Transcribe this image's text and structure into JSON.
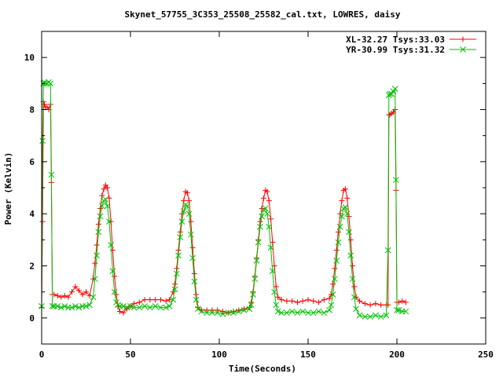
{
  "chart_data": {
    "type": "line",
    "title": "Skynet_57755_3C353_25508_25582_cal.txt, LOWRES, daisy",
    "xlabel": "Time(Seconds)",
    "ylabel": "Power (Kelvin)",
    "xlim": [
      0,
      250
    ],
    "ylim": [
      -1,
      11
    ],
    "xticks": [
      0,
      50,
      100,
      150,
      200,
      250
    ],
    "xtick_labels": [
      "0",
      "50",
      "100",
      "150",
      "200",
      "250"
    ],
    "yticks": [
      0,
      2,
      4,
      6,
      8,
      10
    ],
    "ytick_labels": [
      "0",
      "2",
      "4",
      "6",
      "8",
      "10"
    ],
    "grid": false,
    "legend_position": "top-right",
    "series": [
      {
        "name": "XL-32.27 Tsys:33.03",
        "color": "#ff0000",
        "marker": "plus",
        "x": [
          0,
          0.5,
          1,
          1.5,
          2,
          3,
          4,
          5,
          5.5,
          6,
          7,
          9,
          11,
          13,
          15,
          17,
          19,
          21,
          23,
          25,
          27,
          29,
          30,
          31,
          32,
          33,
          34,
          35,
          36,
          37,
          38,
          39,
          40,
          41,
          42,
          43,
          44,
          46,
          48,
          50,
          52,
          55,
          58,
          61,
          64,
          67,
          70,
          72,
          74,
          75,
          76,
          77,
          78,
          79,
          80,
          81,
          82,
          83,
          84,
          85,
          86,
          87,
          88,
          90,
          93,
          96,
          99,
          102,
          105,
          108,
          111,
          114,
          117,
          118,
          119,
          120,
          121,
          122,
          123,
          124,
          125,
          126,
          127,
          128,
          129,
          130,
          131,
          132,
          133,
          135,
          138,
          141,
          144,
          147,
          150,
          153,
          156,
          159,
          162,
          163,
          164,
          165,
          166,
          167,
          168,
          169,
          170,
          171,
          172,
          173,
          174,
          175,
          176,
          177,
          179,
          182,
          185,
          188,
          191,
          194,
          195,
          195.5,
          196,
          197,
          198,
          199,
          199.5,
          200,
          201,
          203,
          205
        ],
        "values": [
          0.4,
          3.7,
          8.3,
          8.2,
          8.1,
          8.1,
          8.0,
          8.2,
          5.2,
          0.9,
          0.9,
          0.85,
          0.8,
          0.85,
          0.8,
          1.0,
          1.2,
          1.05,
          0.9,
          1.0,
          0.85,
          1.5,
          2.1,
          2.8,
          3.6,
          4.2,
          4.7,
          4.95,
          5.1,
          5.0,
          4.6,
          3.7,
          2.6,
          1.6,
          0.9,
          0.45,
          0.25,
          0.2,
          0.35,
          0.45,
          0.55,
          0.6,
          0.7,
          0.7,
          0.7,
          0.7,
          0.65,
          0.7,
          1.0,
          1.3,
          1.9,
          2.6,
          3.3,
          4.0,
          4.5,
          4.85,
          4.8,
          4.5,
          3.7,
          2.7,
          1.7,
          0.9,
          0.4,
          0.3,
          0.3,
          0.3,
          0.3,
          0.25,
          0.2,
          0.25,
          0.3,
          0.35,
          0.4,
          0.6,
          1.0,
          1.6,
          2.3,
          3.0,
          3.7,
          4.2,
          4.6,
          4.9,
          4.85,
          4.5,
          3.8,
          2.9,
          2.0,
          1.2,
          0.8,
          0.7,
          0.65,
          0.65,
          0.6,
          0.65,
          0.7,
          0.65,
          0.6,
          0.7,
          0.75,
          0.9,
          1.3,
          1.9,
          2.6,
          3.3,
          4.0,
          4.5,
          4.9,
          4.95,
          4.6,
          3.9,
          3.0,
          2.0,
          1.2,
          0.8,
          0.65,
          0.55,
          0.5,
          0.55,
          0.5,
          0.5,
          0.5,
          7.8,
          7.8,
          7.85,
          7.9,
          8.0,
          4.9,
          0.6,
          0.6,
          0.65,
          0.6
        ]
      },
      {
        "name": "YR-30.99 Tsys:31.32",
        "color": "#00c000",
        "marker": "cross",
        "x": [
          0,
          0.5,
          1,
          1.5,
          2,
          3,
          4,
          5,
          5.5,
          6,
          7,
          9,
          11,
          13,
          15,
          17,
          19,
          21,
          23,
          25,
          27,
          29,
          30,
          31,
          32,
          33,
          34,
          35,
          36,
          37,
          38,
          39,
          40,
          41,
          42,
          43,
          44,
          46,
          48,
          50,
          52,
          55,
          58,
          61,
          64,
          67,
          70,
          72,
          74,
          75,
          76,
          77,
          78,
          79,
          80,
          81,
          82,
          83,
          84,
          85,
          86,
          87,
          88,
          90,
          93,
          96,
          99,
          102,
          105,
          108,
          111,
          114,
          117,
          118,
          119,
          120,
          121,
          122,
          123,
          124,
          125,
          126,
          127,
          128,
          129,
          130,
          131,
          132,
          133,
          135,
          138,
          141,
          144,
          147,
          150,
          153,
          156,
          159,
          162,
          163,
          164,
          165,
          166,
          167,
          168,
          169,
          170,
          171,
          172,
          173,
          174,
          175,
          176,
          177,
          179,
          182,
          185,
          188,
          191,
          194,
          195,
          195.5,
          196,
          197,
          198,
          199,
          199.5,
          200,
          201,
          203,
          205
        ],
        "values": [
          0.45,
          6.8,
          9.0,
          9.05,
          9.0,
          9.0,
          9.05,
          9.0,
          5.5,
          0.45,
          0.45,
          0.45,
          0.4,
          0.45,
          0.4,
          0.4,
          0.45,
          0.4,
          0.45,
          0.45,
          0.5,
          0.8,
          1.5,
          2.4,
          3.3,
          3.9,
          4.3,
          4.5,
          4.55,
          4.3,
          3.7,
          2.8,
          1.8,
          1.0,
          0.6,
          0.5,
          0.45,
          0.45,
          0.4,
          0.45,
          0.4,
          0.4,
          0.45,
          0.4,
          0.45,
          0.4,
          0.4,
          0.45,
          0.7,
          1.1,
          1.7,
          2.4,
          3.1,
          3.7,
          4.1,
          4.35,
          4.3,
          4.0,
          3.2,
          2.3,
          1.4,
          0.7,
          0.35,
          0.25,
          0.2,
          0.2,
          0.2,
          0.15,
          0.2,
          0.2,
          0.25,
          0.3,
          0.35,
          0.5,
          0.9,
          1.5,
          2.2,
          2.9,
          3.5,
          3.9,
          4.15,
          4.2,
          4.0,
          3.5,
          2.7,
          1.8,
          1.0,
          0.5,
          0.25,
          0.2,
          0.2,
          0.25,
          0.2,
          0.25,
          0.2,
          0.2,
          0.25,
          0.2,
          0.3,
          0.5,
          0.9,
          1.5,
          2.2,
          2.9,
          3.5,
          3.9,
          4.2,
          4.25,
          4.0,
          3.3,
          2.4,
          1.5,
          0.8,
          0.35,
          0.1,
          0.05,
          0.05,
          0.1,
          0.05,
          0.1,
          2.6,
          8.55,
          8.6,
          8.6,
          8.7,
          8.8,
          5.3,
          0.3,
          0.3,
          0.25,
          0.25
        ]
      }
    ]
  }
}
